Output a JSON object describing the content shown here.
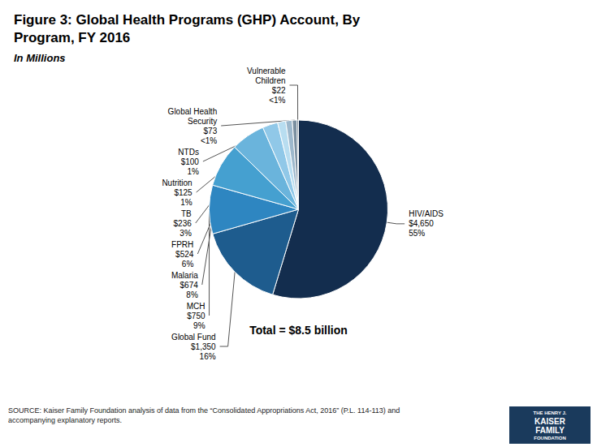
{
  "chart_data": {
    "type": "pie",
    "title": "Figure 3: Global Health Programs (GHP) Account, By\nProgram, FY 2016",
    "subtitle": "In Millions",
    "total_label": "Total = $8.5 billion",
    "source_text": "SOURCE: Kaiser Family Foundation analysis of data from the “Consolidated Appropriations Act, 2016” (P.L. 114-113) and\naccompanying explanatory reports.",
    "logo_text": [
      "THE HENRY J.",
      "KAISER",
      "FAMILY",
      "FOUNDATION"
    ],
    "categories": [
      "HIV/AIDS",
      "Global Fund",
      "MCH",
      "Malaria",
      "FPRH",
      "TB",
      "Nutrition",
      "NTDs",
      "Global Health\nSecurity",
      "Vulnerable\nChildren"
    ],
    "values": [
      4650,
      1350,
      750,
      674,
      524,
      236,
      125,
      100,
      73,
      22
    ],
    "value_labels": [
      "$4,650",
      "$1,350",
      "$750",
      "$674",
      "$524",
      "$236",
      "$125",
      "$100",
      "$73",
      "$22"
    ],
    "share_labels": [
      "55%",
      "16%",
      "9%",
      "8%",
      "6%",
      "3%",
      "1%",
      "1%",
      "<1%",
      "<1%"
    ],
    "colors": [
      "#132d4e",
      "#1e5c8e",
      "#2e86c1",
      "#45a0d0",
      "#6ab4dc",
      "#90c8e8",
      "#b8ddf0",
      "#9db8cc",
      "#7a8fa0",
      "#5a6e7e"
    ]
  }
}
